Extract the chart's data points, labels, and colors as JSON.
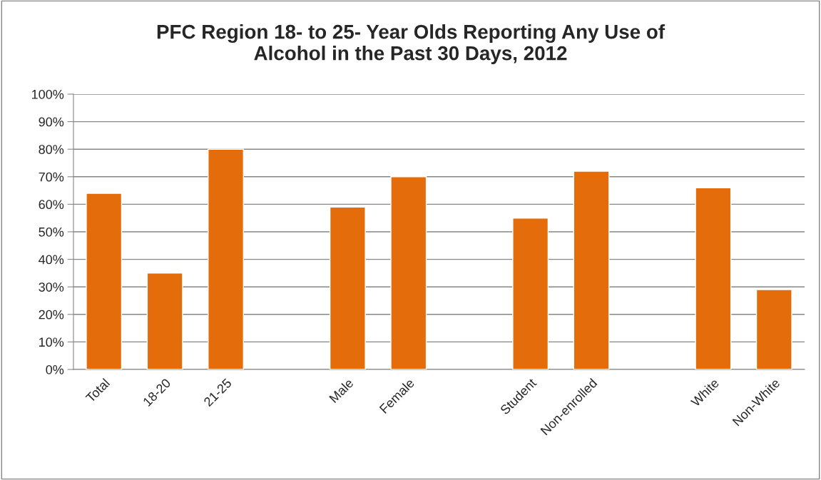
{
  "chart_data": {
    "type": "bar",
    "title": "PFC Region 18- to 25- Year Olds Reporting Any Use of\nAlcohol in the Past 30 Days, 2012",
    "categories": [
      "Total",
      "18-20",
      "21-25",
      null,
      "Male",
      "Female",
      null,
      "Student",
      "Non-enrolled",
      null,
      "White",
      "Non-White"
    ],
    "values": [
      64,
      35,
      80,
      null,
      59,
      70,
      null,
      55,
      72,
      null,
      66,
      29
    ],
    "color": "#e46c0a",
    "ylim": [
      0,
      100
    ],
    "yticks": [
      {
        "value": 0,
        "label": "0%"
      },
      {
        "value": 10,
        "label": "10%"
      },
      {
        "value": 20,
        "label": "20%"
      },
      {
        "value": 30,
        "label": "30%"
      },
      {
        "value": 40,
        "label": "40%"
      },
      {
        "value": 50,
        "label": "50%"
      },
      {
        "value": 60,
        "label": "60%"
      },
      {
        "value": 70,
        "label": "70%"
      },
      {
        "value": 80,
        "label": "80%"
      },
      {
        "value": 90,
        "label": "90%"
      },
      {
        "value": 100,
        "label": "100%"
      }
    ],
    "grid": "y"
  }
}
